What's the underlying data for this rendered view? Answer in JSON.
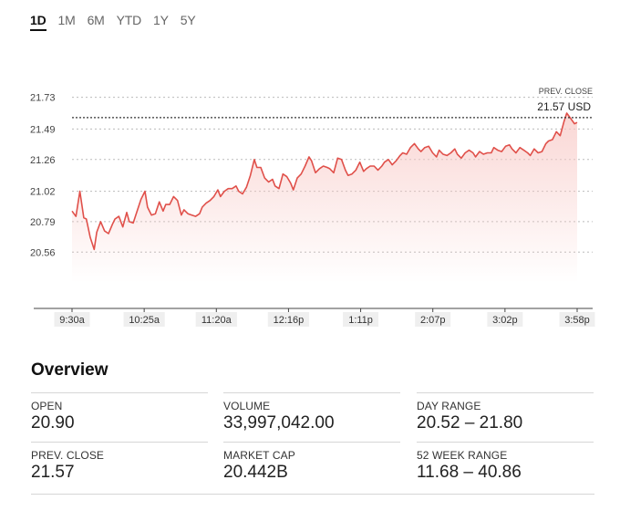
{
  "range_tabs": [
    {
      "label": "1D",
      "active": true
    },
    {
      "label": "1M",
      "active": false
    },
    {
      "label": "6M",
      "active": false
    },
    {
      "label": "YTD",
      "active": false
    },
    {
      "label": "1Y",
      "active": false
    },
    {
      "label": "5Y",
      "active": false
    }
  ],
  "colors": {
    "line": "#e0504a",
    "fill": "#f8c9c6",
    "grid": "#bbbbbb",
    "axis": "#444444",
    "tick_label_bg": "#efefef"
  },
  "chart_data": {
    "type": "area",
    "x_ticks": [
      "9:30a",
      "10:25a",
      "11:20a",
      "12:16p",
      "1:11p",
      "2:07p",
      "3:02p",
      "3:58p"
    ],
    "y_ticks": [
      "21.73",
      "21.49",
      "21.26",
      "21.02",
      "20.79",
      "20.56"
    ],
    "ylim": [
      20.41,
      21.9
    ],
    "prev_close": {
      "label": "PREV. CLOSE",
      "value": 21.57,
      "value_label": "21.57 USD"
    },
    "grid": true,
    "series": [
      {
        "x_minutes": [
          0,
          3,
          6,
          9,
          11,
          14,
          17,
          19,
          22,
          25,
          28,
          31,
          33,
          36,
          39,
          42,
          44,
          47,
          50,
          53,
          56,
          58,
          61,
          64,
          67,
          70,
          72,
          75,
          78,
          81,
          84,
          86,
          89,
          92,
          95,
          98,
          100,
          103,
          106,
          109,
          112,
          114,
          117,
          120,
          123,
          126,
          128,
          131,
          134,
          137,
          140,
          142,
          145,
          148,
          151,
          154,
          156,
          159,
          162,
          165,
          168,
          170,
          173,
          176,
          179,
          182,
          184,
          187,
          190,
          193,
          196,
          198,
          201,
          204,
          207,
          210,
          212,
          215,
          218,
          221,
          224,
          226,
          229,
          232,
          235,
          238,
          240,
          243,
          246,
          249,
          252,
          254,
          257,
          260,
          263,
          266,
          268,
          271,
          274,
          277,
          280,
          282,
          285,
          288,
          291,
          294,
          296,
          299,
          302,
          305,
          308,
          310,
          313,
          316,
          319,
          322,
          324,
          327,
          330,
          333,
          336,
          338,
          341,
          344,
          347,
          350,
          352,
          355,
          358,
          361,
          364,
          366,
          369,
          372,
          375,
          378,
          380,
          383,
          386,
          388
        ],
        "values": [
          20.87,
          20.83,
          21.02,
          20.82,
          20.81,
          20.67,
          20.58,
          20.71,
          20.79,
          20.72,
          20.7,
          20.77,
          20.81,
          20.83,
          20.75,
          20.86,
          20.79,
          20.78,
          20.87,
          20.96,
          21.02,
          20.9,
          20.84,
          20.85,
          20.94,
          20.87,
          20.92,
          20.92,
          20.98,
          20.95,
          20.84,
          20.88,
          20.85,
          20.84,
          20.83,
          20.85,
          20.9,
          20.93,
          20.95,
          20.98,
          21.03,
          20.98,
          21.02,
          21.04,
          21.04,
          21.06,
          21.02,
          21.0,
          21.05,
          21.14,
          21.26,
          21.2,
          21.2,
          21.12,
          21.09,
          21.11,
          21.06,
          21.04,
          21.15,
          21.13,
          21.08,
          21.03,
          21.12,
          21.15,
          21.21,
          21.28,
          21.25,
          21.16,
          21.19,
          21.21,
          21.2,
          21.19,
          21.16,
          21.27,
          21.26,
          21.18,
          21.14,
          21.15,
          21.18,
          21.24,
          21.17,
          21.19,
          21.21,
          21.21,
          21.18,
          21.21,
          21.24,
          21.26,
          21.22,
          21.25,
          21.29,
          21.31,
          21.3,
          21.35,
          21.38,
          21.34,
          21.32,
          21.35,
          21.36,
          21.31,
          21.28,
          21.33,
          21.3,
          21.29,
          21.31,
          21.34,
          21.3,
          21.27,
          21.31,
          21.33,
          21.31,
          21.28,
          21.32,
          21.3,
          21.31,
          21.31,
          21.35,
          21.33,
          21.32,
          21.36,
          21.37,
          21.34,
          21.31,
          21.35,
          21.33,
          21.31,
          21.29,
          21.34,
          21.31,
          21.32,
          21.38,
          21.4,
          21.41,
          21.47,
          21.44,
          21.55,
          21.61,
          21.57,
          21.53,
          21.54
        ]
      }
    ]
  },
  "overview": {
    "title": "Overview",
    "stats": [
      {
        "label": "OPEN",
        "value": "20.90"
      },
      {
        "label": "VOLUME",
        "value": "33,997,042.00"
      },
      {
        "label": "DAY RANGE",
        "value": "20.52 – 21.80"
      },
      {
        "label": "PREV. CLOSE",
        "value": "21.57"
      },
      {
        "label": "MARKET CAP",
        "value": "20.442B"
      },
      {
        "label": "52 WEEK RANGE",
        "value": "11.68 – 40.86"
      }
    ]
  }
}
